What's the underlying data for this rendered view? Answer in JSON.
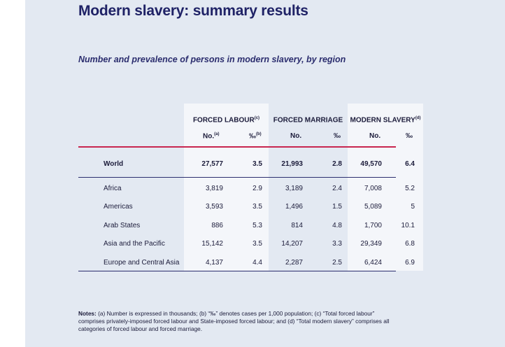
{
  "title": "Modern slavery: summary results",
  "subtitle": "Number and prevalence of persons in modern slavery, by region",
  "table": {
    "groups": [
      {
        "label": "FORCED LABOUR",
        "note": "(c)"
      },
      {
        "label": "FORCED MARRIAGE",
        "note": ""
      },
      {
        "label": "MODERN SLAVERY",
        "note": "(d)"
      }
    ],
    "subheaders": [
      {
        "label": "No.",
        "note": "(a)"
      },
      {
        "label": "‰",
        "note": "(b)"
      },
      {
        "label": "No.",
        "note": ""
      },
      {
        "label": "‰",
        "note": ""
      },
      {
        "label": "No.",
        "note": ""
      },
      {
        "label": "‰",
        "note": ""
      }
    ],
    "world": {
      "region": "World",
      "values": [
        "27,577",
        "3.5",
        "21,993",
        "2.8",
        "49,570",
        "6.4"
      ]
    },
    "rows": [
      {
        "region": "Africa",
        "values": [
          "3,819",
          "2.9",
          "3,189",
          "2.4",
          "7,008",
          "5.2"
        ]
      },
      {
        "region": "Americas",
        "values": [
          "3,593",
          "3.5",
          "1,496",
          "1.5",
          "5,089",
          "5"
        ]
      },
      {
        "region": "Arab States",
        "values": [
          "886",
          "5.3",
          "814",
          "4.8",
          "1,700",
          "10.1"
        ]
      },
      {
        "region": "Asia and the Pacific",
        "values": [
          "15,142",
          "3.5",
          "14,207",
          "3.3",
          "29,349",
          "6.8"
        ]
      },
      {
        "region": "Europe and Central Asia",
        "values": [
          "4,137",
          "4.4",
          "2,287",
          "2.5",
          "6,424",
          "6.9"
        ]
      }
    ]
  },
  "notes": {
    "label": "Notes:",
    "text": "(a) Number is expressed in thousands; (b) “‰” denotes cases per 1,000 population; (c) “Total forced labour” comprises privately-imposed forced labour and State-imposed forced labour; and (d) “Total modern slavery” comprises all categories of forced labour and forced marriage."
  },
  "colors": {
    "panel": "#e3e9f2",
    "title": "#1f2266",
    "accent_line": "#c8264f",
    "rule": "#2b2d6e"
  }
}
